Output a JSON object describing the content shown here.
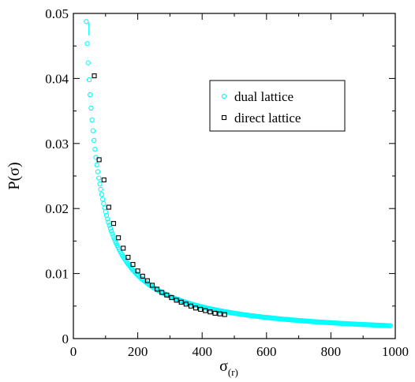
{
  "chart_data": {
    "type": "scatter",
    "title": "",
    "xlabel": "σ",
    "xlabel_sub": "(r)",
    "ylabel": "P(σ)",
    "xlim": [
      0,
      1000
    ],
    "ylim": [
      0,
      0.05
    ],
    "xticks": [
      0,
      200,
      400,
      600,
      800,
      1000
    ],
    "xtick_labels": [
      "0",
      "200",
      "400",
      "600",
      "800",
      "1000"
    ],
    "yticks": [
      0,
      0.01,
      0.02,
      0.03,
      0.04,
      0.05
    ],
    "ytick_labels": [
      "0",
      "0.01",
      "0.02",
      "0.03",
      "0.04",
      "0.05"
    ],
    "grid": false,
    "legend_position": "upper-right",
    "series": [
      {
        "name": "dual lattice",
        "color": "#00ffff",
        "marker": "circle",
        "curve": {
          "form": "a/x",
          "a": 1.95,
          "x_start": 40,
          "x_end": 985,
          "step": 3
        }
      },
      {
        "name": "direct lattice",
        "color": "#000000",
        "marker": "square",
        "points": [
          [
            65,
            0.0404
          ],
          [
            80,
            0.0275
          ],
          [
            95,
            0.0244
          ],
          [
            110,
            0.0202
          ],
          [
            125,
            0.0177
          ],
          [
            140,
            0.0155
          ],
          [
            155,
            0.0139
          ],
          [
            170,
            0.0125
          ],
          [
            185,
            0.0114
          ],
          [
            200,
            0.0104
          ],
          [
            215,
            0.0096
          ],
          [
            230,
            0.0089
          ],
          [
            245,
            0.0082
          ],
          [
            260,
            0.0076
          ],
          [
            275,
            0.0071
          ],
          [
            290,
            0.0067
          ],
          [
            305,
            0.0063
          ],
          [
            320,
            0.0059
          ],
          [
            335,
            0.0056
          ],
          [
            350,
            0.0053
          ],
          [
            365,
            0.005
          ],
          [
            380,
            0.0047
          ],
          [
            395,
            0.0045
          ],
          [
            410,
            0.0043
          ],
          [
            425,
            0.0041
          ],
          [
            440,
            0.0039
          ],
          [
            455,
            0.0038
          ],
          [
            470,
            0.0037
          ]
        ]
      }
    ]
  }
}
